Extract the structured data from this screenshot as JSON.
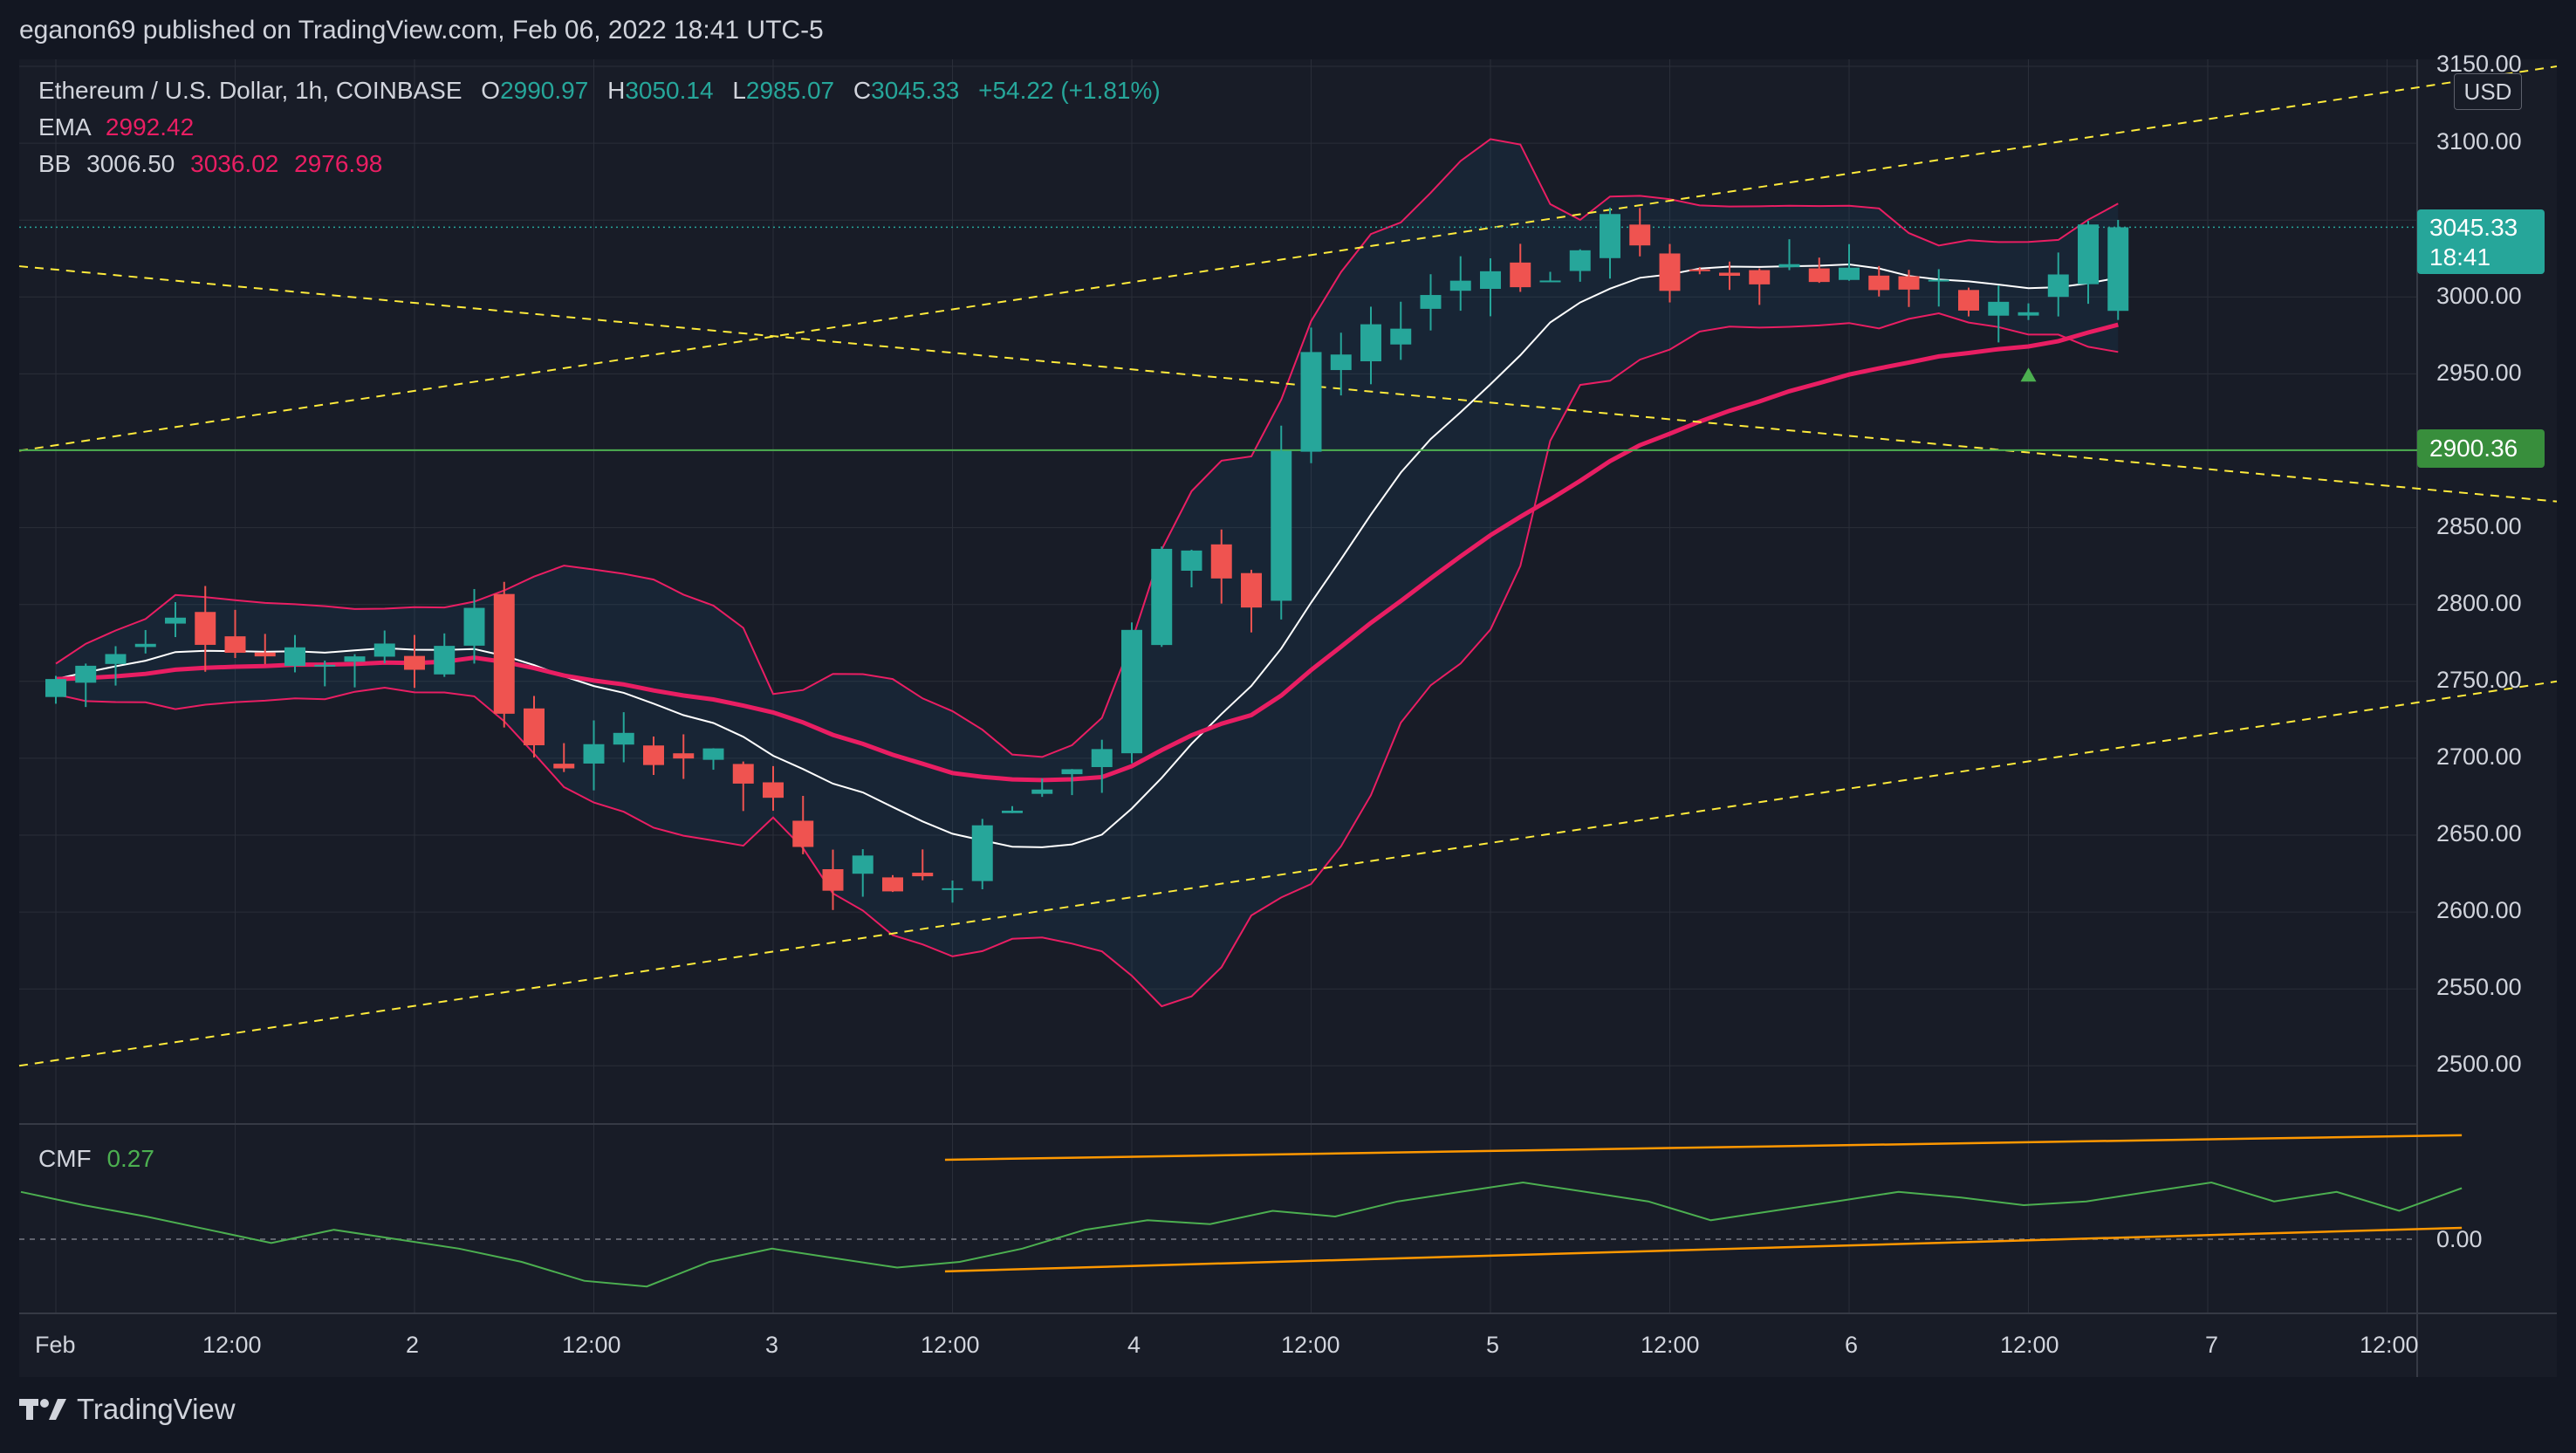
{
  "header": {
    "published": "eganon69 published on TradingView.com, Feb 06, 2022 18:41 UTC-5"
  },
  "legend": {
    "symbol": "Ethereum / U.S. Dollar, 1h, COINBASE",
    "o_label": "O",
    "o": "2990.97",
    "h_label": "H",
    "h": "3050.14",
    "l_label": "L",
    "l": "2985.07",
    "c_label": "C",
    "c": "3045.33",
    "change": "+54.22 (+1.81%)",
    "ema_label": "EMA",
    "ema": "2992.42",
    "bb_label": "BB",
    "bb_basis": "3006.50",
    "bb_upper": "3036.02",
    "bb_lower": "2976.98",
    "cmf_label": "CMF",
    "cmf": "0.27"
  },
  "price_axis": {
    "currency": "USD",
    "ticks": [
      "3150.00",
      "3100.00",
      "3050.00",
      "3000.00",
      "2950.00",
      "2900.00",
      "2850.00",
      "2800.00",
      "2750.00",
      "2700.00",
      "2650.00",
      "2600.00",
      "2550.00",
      "2500.00"
    ],
    "last_price": "3045.33",
    "countdown": "18:41",
    "line_price": "2900.36",
    "cmf_tick": "0.00"
  },
  "time_axis": {
    "ticks": [
      "Feb",
      "12:00",
      "2",
      "12:00",
      "3",
      "12:00",
      "4",
      "12:00",
      "5",
      "12:00",
      "6",
      "12:00",
      "7",
      "12:00"
    ]
  },
  "brand": "TradingView",
  "colors": {
    "up": "#26a69a",
    "down": "#ef5350",
    "bb": "#e91e63",
    "ema": "#e91e63",
    "basis": "#ffffff",
    "cmf": "#4caf50",
    "trend": "#ffeb3b",
    "channel": "#ff9800",
    "hline": "#4caf50"
  },
  "chart_data": {
    "type": "candlestick",
    "symbol": "ETHUSD",
    "timeframe": "1h",
    "x_range": [
      "Feb 1 00:00",
      "Feb 7 12:00"
    ],
    "ylim": [
      2450,
      3160
    ],
    "horizontal_line": 2900.36,
    "key_points": {
      "open": 2990.97,
      "high": 3050.14,
      "low": 2985.07,
      "close": 3045.33
    },
    "price_path": [
      [
        "Feb 1 00:00",
        2740
      ],
      [
        "Feb 1 06:00",
        2770
      ],
      [
        "Feb 1 10:00",
        2800
      ],
      [
        "Feb 1 14:00",
        2770
      ],
      [
        "Feb 1 18:00",
        2760
      ],
      [
        "Feb 1 22:00",
        2770
      ],
      [
        "Feb 2 02:00",
        2760
      ],
      [
        "Feb 2 06:00",
        2800
      ],
      [
        "Feb 2 09:00",
        2700
      ],
      [
        "Feb 2 13:00",
        2700
      ],
      [
        "Feb 2 17:00",
        2710
      ],
      [
        "Feb 2 21:00",
        2700
      ],
      [
        "Feb 3 01:00",
        2680
      ],
      [
        "Feb 3 05:00",
        2620
      ],
      [
        "Feb 3 09:00",
        2630
      ],
      [
        "Feb 3 13:00",
        2610
      ],
      [
        "Feb 3 16:00",
        2660
      ],
      [
        "Feb 3 20:00",
        2690
      ],
      [
        "Feb 4 00:00",
        2700
      ],
      [
        "Feb 4 03:00",
        2820
      ],
      [
        "Feb 4 06:00",
        2840
      ],
      [
        "Feb 4 10:00",
        2800
      ],
      [
        "Feb 4 13:00",
        2950
      ],
      [
        "Feb 4 17:00",
        2960
      ],
      [
        "Feb 4 21:00",
        3000
      ],
      [
        "Feb 5 02:00",
        3020
      ],
      [
        "Feb 5 06:00",
        3010
      ],
      [
        "Feb 5 10:00",
        3050
      ],
      [
        "Feb 5 13:00",
        3010
      ],
      [
        "Feb 5 18:00",
        3020
      ],
      [
        "Feb 5 22:00",
        3020
      ],
      [
        "Feb 6 04:00",
        3010
      ],
      [
        "Feb 6 08:00",
        3000
      ],
      [
        "Feb 6 11:00",
        2990
      ],
      [
        "Feb 6 15:00",
        2995
      ],
      [
        "Feb 6 18:00",
        3045
      ]
    ],
    "cmf_ylim": [
      -0.35,
      0.55
    ],
    "cmf_values": [
      0.25,
      0.18,
      0.12,
      0.05,
      -0.02,
      0.05,
      0.0,
      -0.05,
      -0.12,
      -0.22,
      -0.25,
      -0.12,
      -0.05,
      -0.1,
      -0.15,
      -0.12,
      -0.05,
      0.05,
      0.1,
      0.08,
      0.15,
      0.12,
      0.2,
      0.25,
      0.3,
      0.25,
      0.2,
      0.1,
      0.15,
      0.2,
      0.25,
      0.22,
      0.18,
      0.2,
      0.25,
      0.3,
      0.2,
      0.25,
      0.15,
      0.27
    ]
  }
}
